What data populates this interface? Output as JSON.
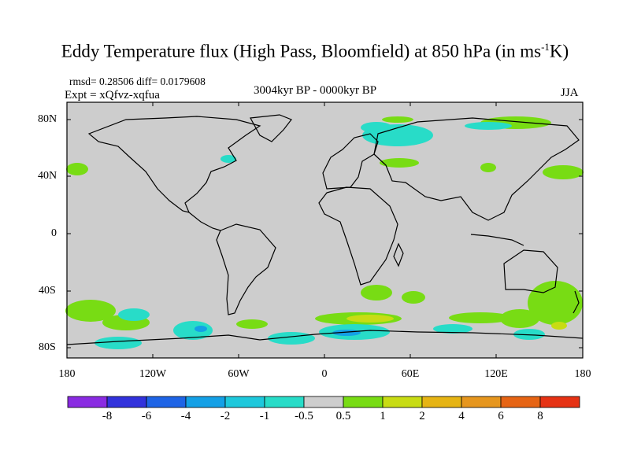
{
  "title": {
    "main": "Eddy Temperature flux (High Pass, Bloomfield) at 850 hPa (in ms",
    "sup": "-1",
    "unit_end": "K)"
  },
  "stats": "rmsd= 0.28506 diff= 0.0179608",
  "experiment": "Expt = xQfvz-xqfua",
  "period": "3004kyr BP - 0000kyr BP",
  "season": "JJA",
  "map": {
    "lat_labels": [
      "80N",
      "40N",
      "0",
      "40S",
      "80S"
    ],
    "lon_labels": [
      "180",
      "120W",
      "60W",
      "0",
      "60E",
      "120E",
      "180"
    ],
    "background_color": "#cdcdcd",
    "coastline_color": "#000000"
  },
  "colorbar": {
    "labels": [
      "-8",
      "-6",
      "-4",
      "-2",
      "-1",
      "-0.5",
      "0.5",
      "1",
      "2",
      "4",
      "6",
      "8"
    ],
    "colors": [
      "#8a2be2",
      "#3232dc",
      "#1e64e6",
      "#14a0e6",
      "#1ec8dc",
      "#28dcc8",
      "#cdcdcd",
      "#78dc14",
      "#c8dc14",
      "#e6b414",
      "#e6961e",
      "#e66414",
      "#e63214"
    ]
  }
}
